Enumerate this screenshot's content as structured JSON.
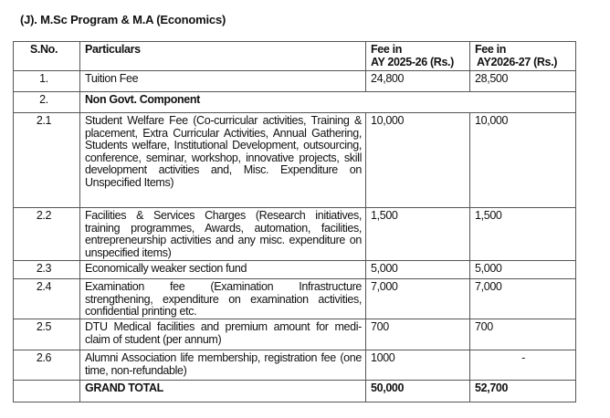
{
  "title": "(J).  M.Sc Program & M.A (Economics)",
  "headers": {
    "sno": "S.No.",
    "particulars": "Particulars",
    "fee1": "Fee in",
    "fee1_sub": "AY 2025-26 (Rs.)",
    "fee2": "Fee in",
    "fee2_sub": "AY2026-27 (Rs.)"
  },
  "rows": [
    {
      "sno": "1.",
      "particulars": "Tuition Fee",
      "fee1": "24,800",
      "fee2": "28,500"
    },
    {
      "sno": "2.",
      "particulars": "Non Govt. Component"
    },
    {
      "sno": "2.1",
      "particulars": "Student Welfare Fee (Co-curricular activities, Training & placement, Extra Curricular Activities, Annual Gathering, Students welfare, Institutional Development, outsourcing, conference, seminar, workshop, innovative projects, skill development activities and, Misc. Expenditure on Unspecified Items)",
      "fee1": "10,000",
      "fee2": "10,000"
    },
    {
      "sno": "2.2",
      "particulars": "Facilities & Services Charges (Research initiatives, training programmes, Awards, automation, facilities, entrepreneurship activities and any misc. expenditure on unspecified items)",
      "fee1": "1,500",
      "fee2": "1,500"
    },
    {
      "sno": "2.3",
      "particulars": "Economically weaker section fund",
      "fee1": "5,000",
      "fee2": "5,000"
    },
    {
      "sno": "2.4",
      "particulars": "Examination fee (Examination Infrastructure strengthening, expenditure on examination activities, confidential printing etc.",
      "fee1": "7,000",
      "fee2": "7,000"
    },
    {
      "sno": "2.5",
      "particulars": "DTU Medical facilities and premium amount for medi-claim of student (per annum)",
      "fee1": "700",
      "fee2": "700"
    },
    {
      "sno": "2.6",
      "particulars": "Alumni Association life membership, registration fee (one time, non-refundable)",
      "fee1": "1000",
      "fee2": "-"
    }
  ],
  "total": {
    "label": "GRAND TOTAL",
    "fee1": "50,000",
    "fee2": "52,700"
  }
}
